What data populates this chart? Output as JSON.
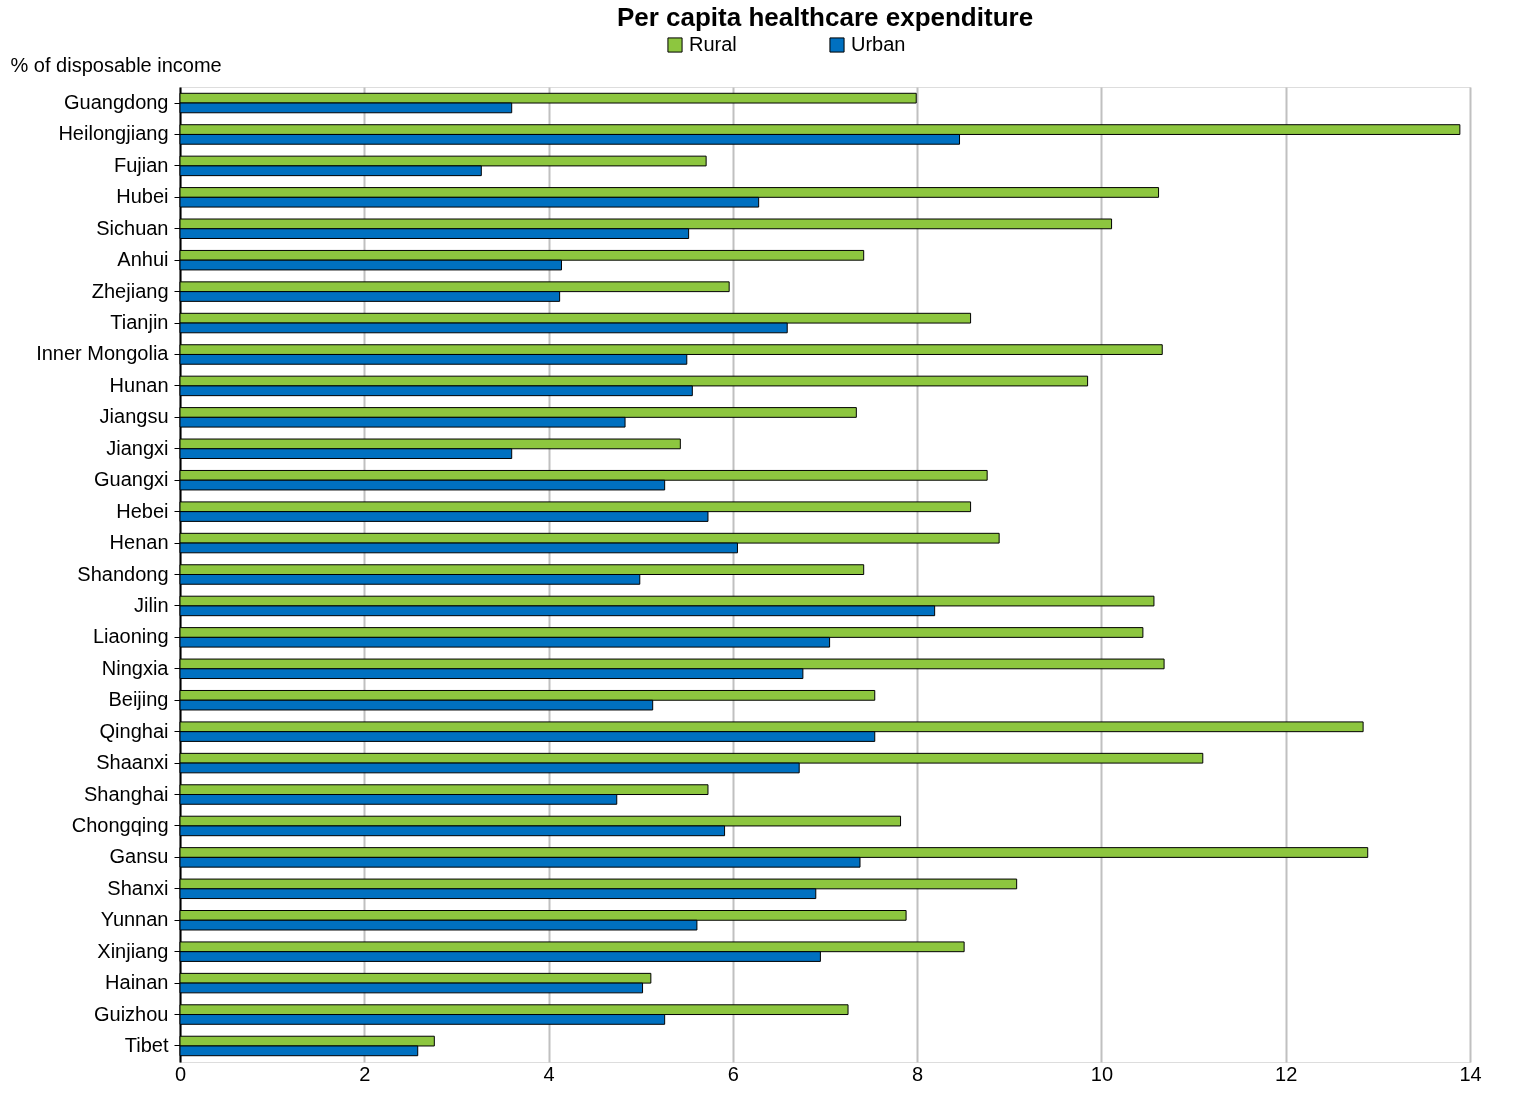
{
  "chart_data": {
    "type": "bar",
    "orientation": "horizontal",
    "title": "Per capita healthcare expenditure",
    "ylabel": "% of disposable income",
    "categories": [
      "Guangdong",
      "Heilongjiang",
      "Fujian",
      "Hubei",
      "Sichuan",
      "Anhui",
      "Zhejiang",
      "Tianjin",
      "Inner Mongolia",
      "Hunan",
      "Jiangsu",
      "Jiangxi",
      "Guangxi",
      "Hebei",
      "Henan",
      "Shandong",
      "Jilin",
      "Liaoning",
      "Ningxia",
      "Beijing",
      "Qinghai",
      "Shaanxi",
      "Shanghai",
      "Chongqing",
      "Gansu",
      "Shanxi",
      "Yunnan",
      "Xinjiang",
      "Hainan",
      "Guizhou",
      "Tibet"
    ],
    "series": [
      {
        "name": "Rural",
        "color": "#8dc63f",
        "values": [
          7.99,
          13.89,
          5.71,
          10.62,
          10.11,
          7.42,
          5.96,
          8.58,
          10.66,
          9.85,
          7.34,
          5.43,
          8.76,
          8.58,
          8.89,
          7.42,
          10.57,
          10.45,
          10.68,
          7.54,
          12.84,
          11.1,
          5.73,
          7.82,
          12.89,
          9.08,
          7.88,
          8.51,
          5.11,
          7.25,
          2.76
        ]
      },
      {
        "name": "Urban",
        "color": "#0070c0",
        "values": [
          3.6,
          8.46,
          3.27,
          6.28,
          5.52,
          4.14,
          4.12,
          6.59,
          5.5,
          5.56,
          4.83,
          3.6,
          5.26,
          5.73,
          6.05,
          4.99,
          8.19,
          7.05,
          6.76,
          5.13,
          7.54,
          6.72,
          4.74,
          5.91,
          7.38,
          6.9,
          5.61,
          6.95,
          5.02,
          5.26,
          2.58
        ]
      }
    ],
    "xlim": [
      0,
      14
    ],
    "xticks": [
      0,
      2,
      4,
      6,
      8,
      10,
      12,
      14
    ],
    "grid": "x",
    "legend": "top"
  }
}
